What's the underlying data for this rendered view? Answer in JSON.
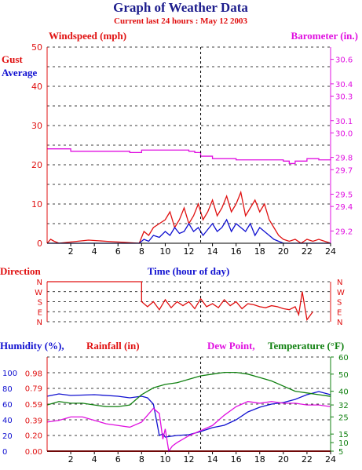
{
  "header": {
    "title": "Graph of Weather Data",
    "subtitle": "Current last 24 hours : May 12 2003"
  },
  "colors": {
    "title": "#1c1c8c",
    "subtitle": "#e01010",
    "red": "#e01010",
    "blue": "#1010d0",
    "magenta": "#e010e0",
    "green": "#108010",
    "axis": "#000000",
    "grid": "#000000"
  },
  "chart_data": [
    {
      "type": "line",
      "labels": {
        "windspeed": "Windspeed (mph)",
        "barometer": "Barometer (in.)",
        "gust": "Gust",
        "average": "Average"
      },
      "x_ticks": [
        "2",
        "4",
        "6",
        "8",
        "10",
        "12",
        "14",
        "16",
        "18",
        "20",
        "22",
        "24"
      ],
      "xlim": [
        0,
        24
      ],
      "ylim": [
        0,
        50
      ],
      "y_ticks": [
        "0",
        "10",
        "20",
        "30",
        "40",
        "50"
      ],
      "y2lim": [
        29.1,
        30.7
      ],
      "y2_ticks": [
        "29.2",
        "29.4",
        "29.5",
        "29.7",
        "29.8",
        "30.0",
        "30.1",
        "30.3",
        "30.4",
        "30.6"
      ],
      "marker_hour": 13,
      "series": [
        {
          "name": "Gust",
          "color": "red",
          "x": [
            0,
            0.3,
            0.6,
            1,
            3.5,
            5,
            7.8,
            8.2,
            8.6,
            9,
            9.5,
            10,
            10.4,
            10.8,
            11.2,
            11.6,
            12,
            12.4,
            12.8,
            13.2,
            13.6,
            14,
            14.4,
            14.8,
            15.2,
            15.6,
            16,
            16.4,
            16.8,
            17.2,
            17.6,
            18,
            18.4,
            18.8,
            19.2,
            19.6,
            20,
            20.5,
            21,
            21.5,
            22,
            22.5,
            23,
            23.5,
            24
          ],
          "y": [
            0,
            1,
            0.5,
            0,
            0.8,
            0.5,
            0,
            3,
            2,
            4,
            5,
            6,
            8,
            4,
            6,
            9,
            5,
            7,
            10,
            6,
            8,
            11,
            7,
            9,
            12,
            8,
            10,
            13,
            7,
            9,
            11,
            8,
            10,
            6,
            4,
            2,
            1,
            0.5,
            1,
            0,
            1,
            0.5,
            1,
            0.5,
            0
          ]
        },
        {
          "name": "Average",
          "color": "blue",
          "x": [
            0,
            7.8,
            8.2,
            8.6,
            9,
            9.5,
            10,
            10.4,
            10.8,
            11.2,
            11.6,
            12,
            12.4,
            12.8,
            13.2,
            13.6,
            14,
            14.4,
            14.8,
            15.2,
            15.6,
            16,
            16.4,
            16.8,
            17.2,
            17.6,
            18,
            18.4,
            18.8,
            19.2,
            19.6,
            20,
            24
          ],
          "y": [
            0,
            0,
            1,
            0.5,
            2,
            1.5,
            3,
            2,
            4,
            2.5,
            3,
            5,
            3,
            4,
            2,
            3.5,
            5,
            3,
            4,
            6,
            3,
            5,
            4,
            3,
            5,
            2,
            4,
            3,
            2,
            1,
            0.5,
            0,
            0
          ]
        },
        {
          "name": "Barometer",
          "color": "magenta",
          "x": [
            0,
            1,
            2,
            4,
            6,
            7,
            8,
            10,
            12,
            12.5,
            13,
            14,
            16,
            18,
            19,
            20,
            20.5,
            21,
            22,
            23,
            24
          ],
          "y": [
            29.87,
            29.87,
            29.85,
            29.85,
            29.85,
            29.84,
            29.86,
            29.86,
            29.85,
            29.84,
            29.81,
            29.79,
            29.78,
            29.78,
            29.78,
            29.77,
            29.75,
            29.77,
            29.79,
            29.78,
            29.79
          ]
        }
      ]
    },
    {
      "type": "line",
      "labels": {
        "direction": "Direction",
        "time": "Time (hour of day)"
      },
      "xlim": [
        0,
        24
      ],
      "categories": [
        "N",
        "W",
        "S",
        "E",
        "N"
      ],
      "series": [
        {
          "name": "Direction",
          "color": "red",
          "x": [
            0,
            8,
            8,
            8.5,
            9,
            9.5,
            10,
            10.5,
            11,
            11.5,
            12,
            12.5,
            13,
            13.5,
            14,
            14.5,
            15,
            15.5,
            16,
            16.5,
            17,
            17.5,
            18,
            18.5,
            19,
            19.5,
            20,
            20.5,
            21,
            21.3,
            21.6,
            22,
            22.5
          ],
          "y": [
            4,
            4,
            2,
            1.5,
            2,
            1.2,
            2.2,
            1.4,
            2,
            1.6,
            2,
            1.3,
            2.3,
            1.5,
            1.8,
            1.4,
            2.2,
            1.6,
            2,
            1.3,
            1.8,
            1.7,
            1.5,
            1.4,
            1.6,
            1.5,
            1.3,
            1.2,
            1.5,
            0.7,
            3,
            0.2,
            1
          ]
        }
      ]
    },
    {
      "type": "line",
      "labels": {
        "humidity": "Humidity (%),",
        "rainfall": "Rainfall (in)",
        "dewpoint": "Dew Point,",
        "temperature": "Temperature (°F)"
      },
      "xlim": [
        0,
        24
      ],
      "humidity_ticks": [
        "100",
        "80",
        "60",
        "40",
        "20",
        "0"
      ],
      "rain_ticks": [
        "0.98",
        "0.79",
        "0.59",
        "0.39",
        "0.20",
        "0.00"
      ],
      "temp_ticks": [
        "60",
        "50",
        "40",
        "32",
        "25",
        "15",
        "10",
        "5"
      ],
      "series": [
        {
          "name": "Humidity",
          "color": "blue",
          "x": [
            0,
            1,
            2,
            4,
            6,
            7,
            8,
            8.5,
            9,
            9.5,
            9.8,
            10,
            10.5,
            11,
            12,
            13,
            14,
            15,
            16,
            17,
            18,
            19,
            20,
            21,
            22,
            23,
            24
          ],
          "y": [
            70,
            73,
            71,
            72,
            70,
            68,
            70,
            68,
            60,
            20,
            22,
            18,
            19,
            20,
            21,
            25,
            30,
            33,
            40,
            50,
            56,
            60,
            62,
            66,
            72,
            76,
            72
          ]
        },
        {
          "name": "Rainfall",
          "color": "red",
          "x": [
            0,
            24
          ],
          "y": [
            0,
            0
          ]
        },
        {
          "name": "Dew Point",
          "color": "magenta",
          "x": [
            0,
            1,
            2,
            3,
            4,
            5,
            6,
            7,
            8,
            9,
            9.5,
            9.8,
            10,
            10.3,
            10.6,
            11,
            12,
            13,
            14,
            15,
            16,
            17,
            18,
            19,
            20,
            21,
            22,
            23,
            24
          ],
          "y": [
            22,
            23,
            25,
            25,
            23,
            21,
            20,
            19,
            22,
            30,
            27,
            12,
            18,
            5,
            8,
            10,
            14,
            17,
            20,
            26,
            31,
            34,
            33,
            34,
            33,
            33,
            32,
            32,
            31
          ]
        },
        {
          "name": "Temperature",
          "color": "green",
          "x": [
            0,
            1,
            2,
            3,
            4,
            5,
            6,
            7,
            8,
            9,
            10,
            11,
            12,
            13,
            14,
            15,
            16,
            17,
            18,
            19,
            20,
            21,
            22,
            23,
            24
          ],
          "y": [
            32,
            34,
            33,
            33,
            32,
            31,
            31,
            32,
            38,
            42,
            44,
            45,
            47,
            49,
            50,
            51,
            51,
            50,
            48,
            46,
            43,
            40,
            39,
            38,
            37
          ]
        }
      ]
    }
  ]
}
